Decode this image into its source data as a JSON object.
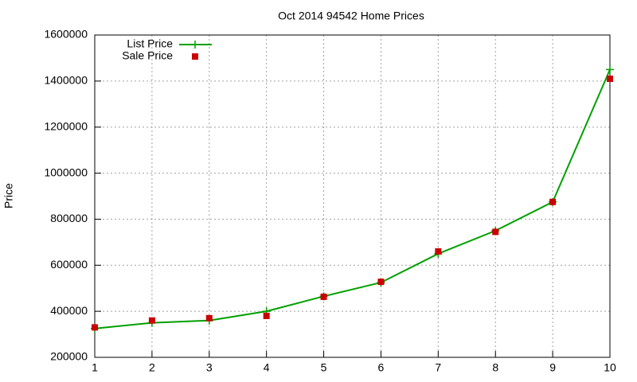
{
  "chart_data": {
    "type": "line",
    "title": "Oct 2014 94542 Home Prices",
    "y_label": "Price",
    "x": [
      1,
      2,
      3,
      4,
      5,
      6,
      7,
      8,
      9,
      10
    ],
    "series": [
      {
        "name": "List Price",
        "color": "#00a000",
        "style": "linespoints",
        "values": [
          325000,
          350000,
          360000,
          400000,
          465000,
          525000,
          650000,
          750000,
          875000,
          1450000
        ]
      },
      {
        "name": "Sale Price",
        "color": "#cc0000",
        "style": "points",
        "values": [
          330000,
          360000,
          370000,
          380000,
          463000,
          528000,
          660000,
          745000,
          875000,
          1410000
        ]
      }
    ],
    "xlim": [
      1,
      10
    ],
    "xticks": [
      1,
      2,
      3,
      4,
      5,
      6,
      7,
      8,
      9,
      10
    ],
    "ylim": [
      200000,
      1600000
    ],
    "yticks": [
      200000,
      400000,
      600000,
      800000,
      1000000,
      1200000,
      1400000,
      1600000
    ],
    "grid": true,
    "legend": "top-left"
  }
}
